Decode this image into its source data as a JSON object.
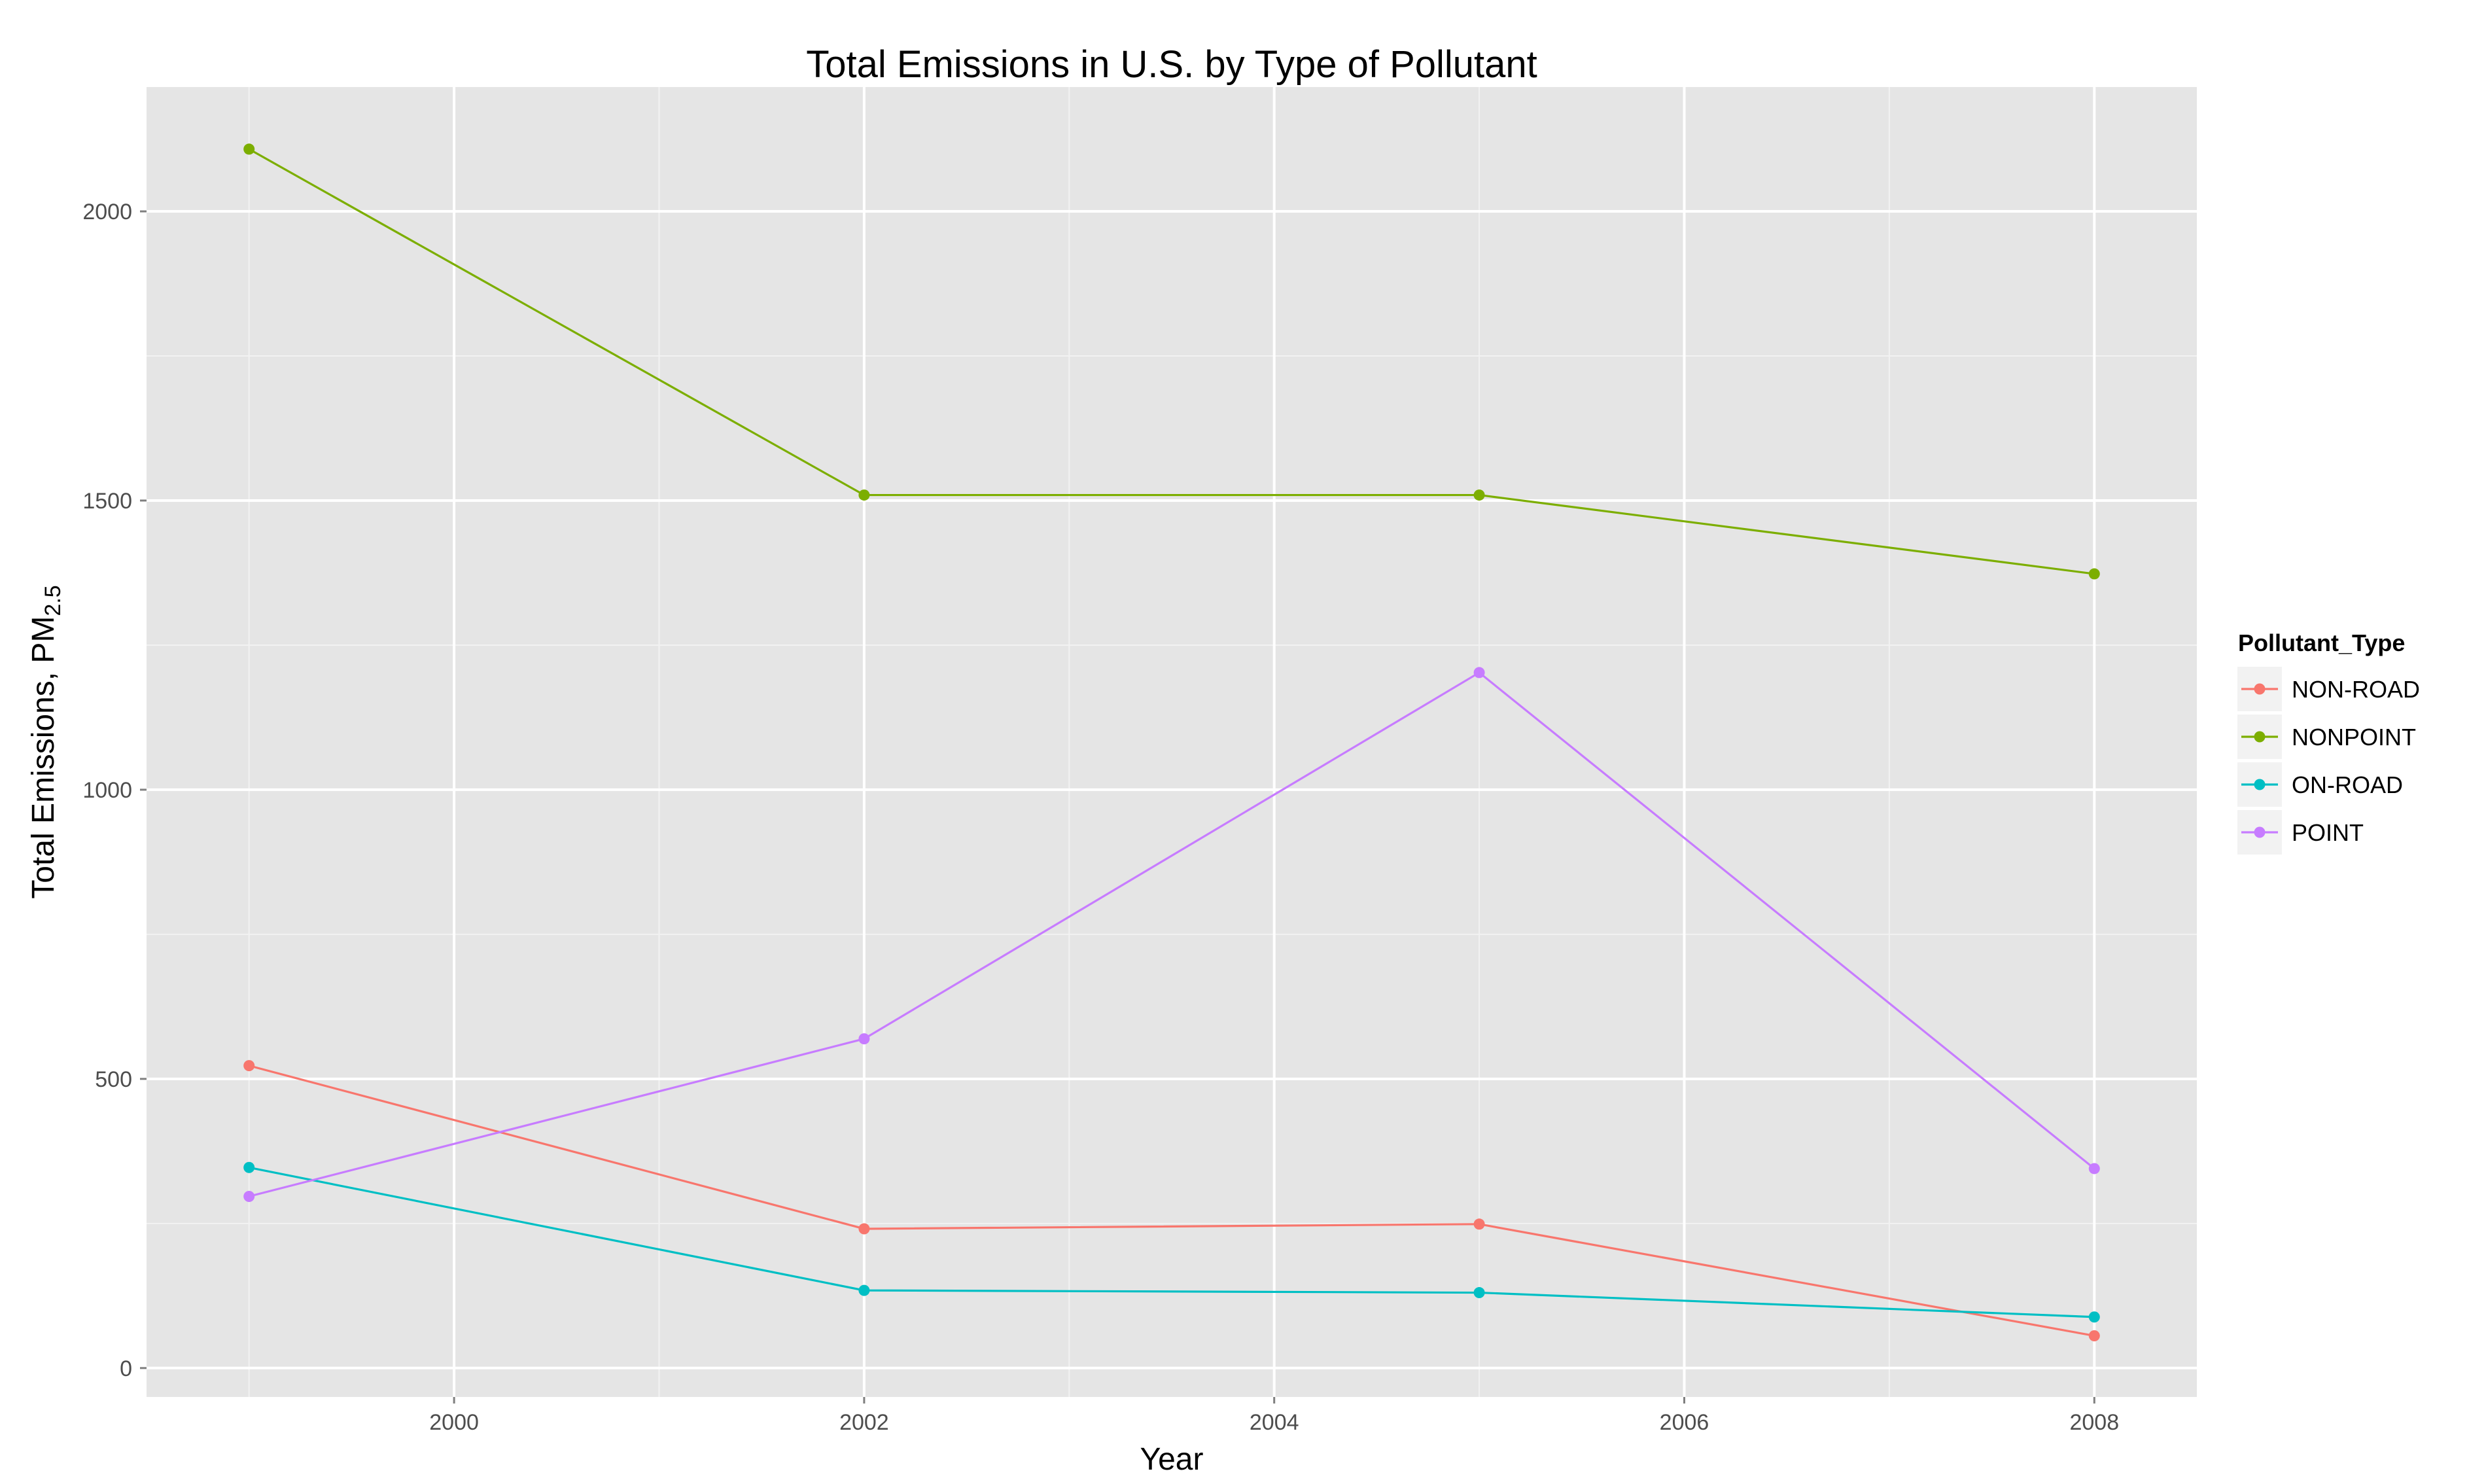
{
  "chart_data": {
    "type": "line",
    "title": "Total Emissions in U.S. by Type of Pollutant",
    "xlabel": "Year",
    "ylabel": {
      "main": "Total Emissions, PM",
      "subscript": "2.5"
    },
    "x": [
      1999,
      2002,
      2005,
      2008
    ],
    "xlim": [
      1998.5,
      2008.5
    ],
    "ylim": [
      -50,
      2215
    ],
    "x_ticks": [
      2000,
      2002,
      2004,
      2006,
      2008
    ],
    "x_tick_labels": [
      "2000",
      "2002",
      "2004",
      "2006",
      "2008"
    ],
    "y_ticks": [
      0,
      500,
      1000,
      1500,
      2000
    ],
    "y_tick_labels": [
      "0",
      "500",
      "1000",
      "1500",
      "2000"
    ],
    "grid": true,
    "legend": {
      "title": "Pollutant_Type",
      "position": "right"
    },
    "series": [
      {
        "name": "NON-ROAD",
        "color": "#F8766D",
        "values": [
          522.9,
          240.8,
          248.9,
          55.8
        ]
      },
      {
        "name": "NONPOINT",
        "color": "#7CAE00",
        "values": [
          2107.6,
          1509.5,
          1509.5,
          1373.2
        ]
      },
      {
        "name": "ON-ROAD",
        "color": "#00BFC4",
        "values": [
          346.8,
          134.3,
          130.4,
          88.3
        ]
      },
      {
        "name": "POINT",
        "color": "#C77CFF",
        "values": [
          296.8,
          569.3,
          1202.5,
          344.9
        ]
      }
    ]
  }
}
